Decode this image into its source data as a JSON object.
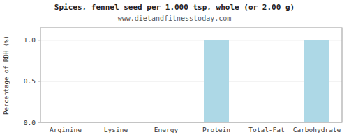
{
  "chart_data": {
    "type": "bar",
    "title": "Spices, fennel seed per 1.000 tsp, whole (or 2.00 g)",
    "subtitle": "www.dietandfitnesstoday.com",
    "ylabel": "Percentage of RDH (%)",
    "categories": [
      "Arginine",
      "Lysine",
      "Energy",
      "Protein",
      "Total-Fat",
      "Carbohydrate"
    ],
    "values": [
      0.0,
      0.0,
      0.0,
      1.0,
      0.0,
      1.0
    ],
    "color": "#add8e6",
    "ylim": [
      0,
      1.15
    ],
    "yticks": [
      {
        "value": 0,
        "label": "0.0"
      },
      0.5,
      {
        "value": 1,
        "label": "1.0"
      }
    ],
    "grid": true
  }
}
